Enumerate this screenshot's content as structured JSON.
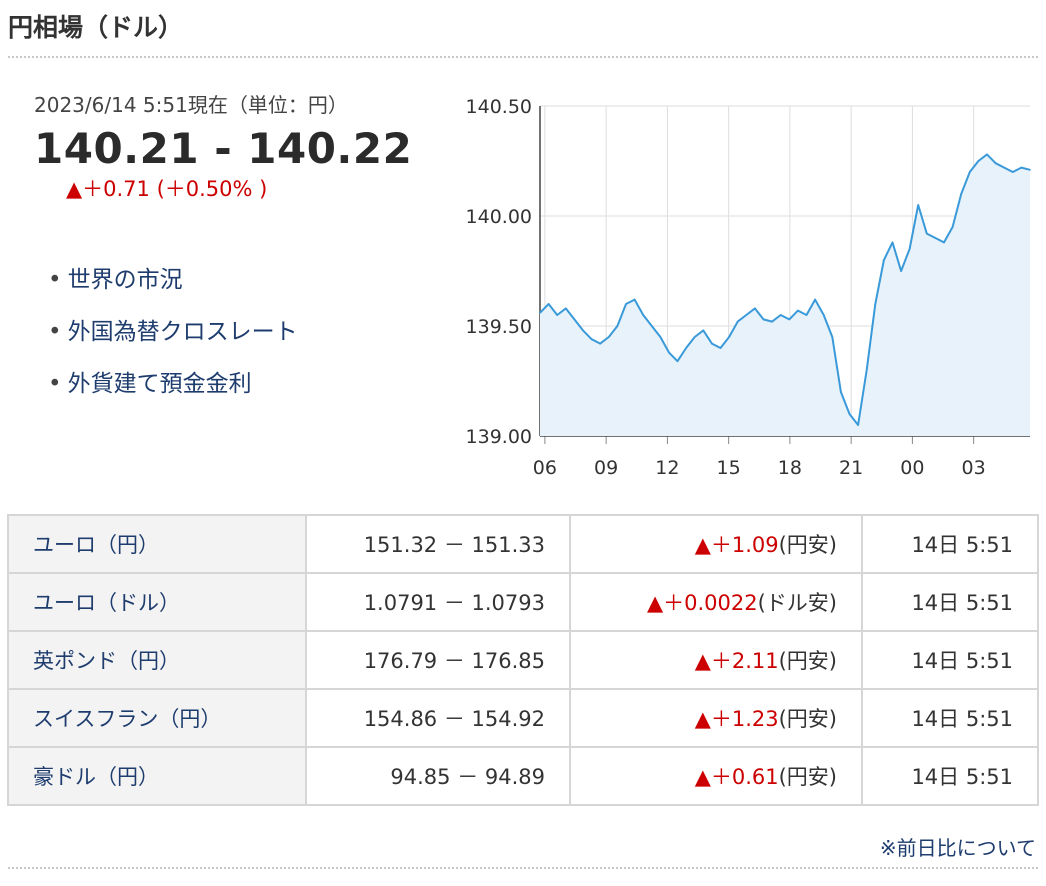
{
  "header": {
    "title": "円相場（ドル）"
  },
  "quote": {
    "timestamp": "2023/6/14 5:51現在（単位：円）",
    "price": "140.21 - 140.22",
    "change": "▲＋0.71 (＋0.50% )"
  },
  "links": [
    {
      "label": "世界の市況"
    },
    {
      "label": "外国為替クロスレート"
    },
    {
      "label": "外貨建て預金金利"
    }
  ],
  "chart_data": {
    "type": "area",
    "title": "",
    "xlabel": "",
    "ylabel": "",
    "ylim": [
      139.0,
      140.5
    ],
    "y_ticks": [
      "140.50",
      "140.00",
      "139.50",
      "139.00"
    ],
    "x_ticks": [
      "06",
      "09",
      "12",
      "15",
      "18",
      "21",
      "00",
      "03"
    ],
    "grid": true,
    "line_color": "#3a9ad9",
    "fill_color": "#e8f2fb",
    "series": [
      {
        "values": [
          139.56,
          139.6,
          139.55,
          139.58,
          139.53,
          139.48,
          139.44,
          139.42,
          139.45,
          139.5,
          139.6,
          139.62,
          139.55,
          139.5,
          139.45,
          139.38,
          139.34,
          139.4,
          139.45,
          139.48,
          139.42,
          139.4,
          139.45,
          139.52,
          139.55,
          139.58,
          139.53,
          139.52,
          139.55,
          139.53,
          139.57,
          139.55,
          139.62,
          139.55,
          139.45,
          139.2,
          139.1,
          139.05,
          139.3,
          139.6,
          139.8,
          139.88,
          139.75,
          139.85,
          140.05,
          139.92,
          139.9,
          139.88,
          139.95,
          140.1,
          140.2,
          140.25,
          140.28,
          140.24,
          140.22,
          140.2,
          140.22,
          140.21
        ]
      }
    ]
  },
  "rates_table": {
    "rows": [
      {
        "name": "ユーロ（円）",
        "range": "151.32 － 151.33",
        "change": "▲＋1.09",
        "note": "(円安)",
        "time": "14日 5:51"
      },
      {
        "name": "ユーロ（ドル）",
        "range": "1.0791 － 1.0793",
        "change": "▲＋0.0022",
        "note": "(ドル安)",
        "time": "14日 5:51"
      },
      {
        "name": "英ポンド（円）",
        "range": "176.79 － 176.85",
        "change": "▲＋2.11",
        "note": "(円安)",
        "time": "14日 5:51"
      },
      {
        "name": "スイスフラン（円）",
        "range": "154.86 － 154.92",
        "change": "▲＋1.23",
        "note": "(円安)",
        "time": "14日 5:51"
      },
      {
        "name": "豪ドル（円）",
        "range": "94.85 － 94.89",
        "change": "▲＋0.61",
        "note": "(円安)",
        "time": "14日 5:51"
      }
    ]
  },
  "footer": {
    "note_link": "※前日比について"
  }
}
